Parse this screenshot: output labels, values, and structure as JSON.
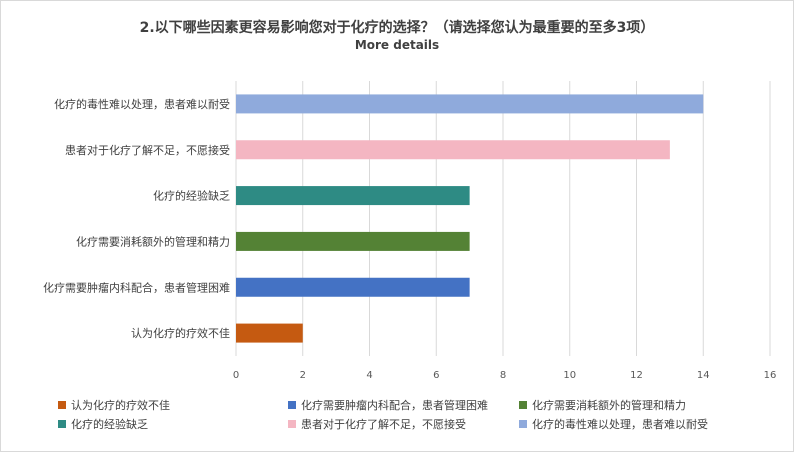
{
  "chart_data": {
    "type": "bar",
    "orientation": "horizontal",
    "title": "2.以下哪些因素更容易影响您对于化疗的选择？（请选择您认为最重要的至多3项）",
    "subtitle": "More details",
    "categories": [
      "认为化疗的疗效不佳",
      "化疗需要肿瘤内科配合，患者管理困难",
      "化疗需要消耗额外的管理和精力",
      "化疗的经验缺乏",
      "患者对于化疗了解不足，不愿接受",
      "化疗的毒性难以处理，患者难以耐受"
    ],
    "values": [
      2,
      7,
      7,
      7,
      13,
      14
    ],
    "colors": [
      "#c55a11",
      "#4472c4",
      "#548235",
      "#2e8b84",
      "#f4b6c2",
      "#8faadc"
    ],
    "xlim": [
      0,
      16
    ],
    "xticks": [
      0,
      2,
      4,
      6,
      8,
      10,
      12,
      14,
      16
    ],
    "grid": true,
    "legend": {
      "placement": "bottom",
      "items": [
        "认为化疗的疗效不佳",
        "化疗需要肿瘤内科配合，患者管理困难",
        "化疗需要消耗额外的管理和精力",
        "化疗的经验缺乏",
        "患者对于化疗了解不足，不愿接受",
        "化疗的毒性难以处理，患者难以耐受"
      ]
    }
  }
}
